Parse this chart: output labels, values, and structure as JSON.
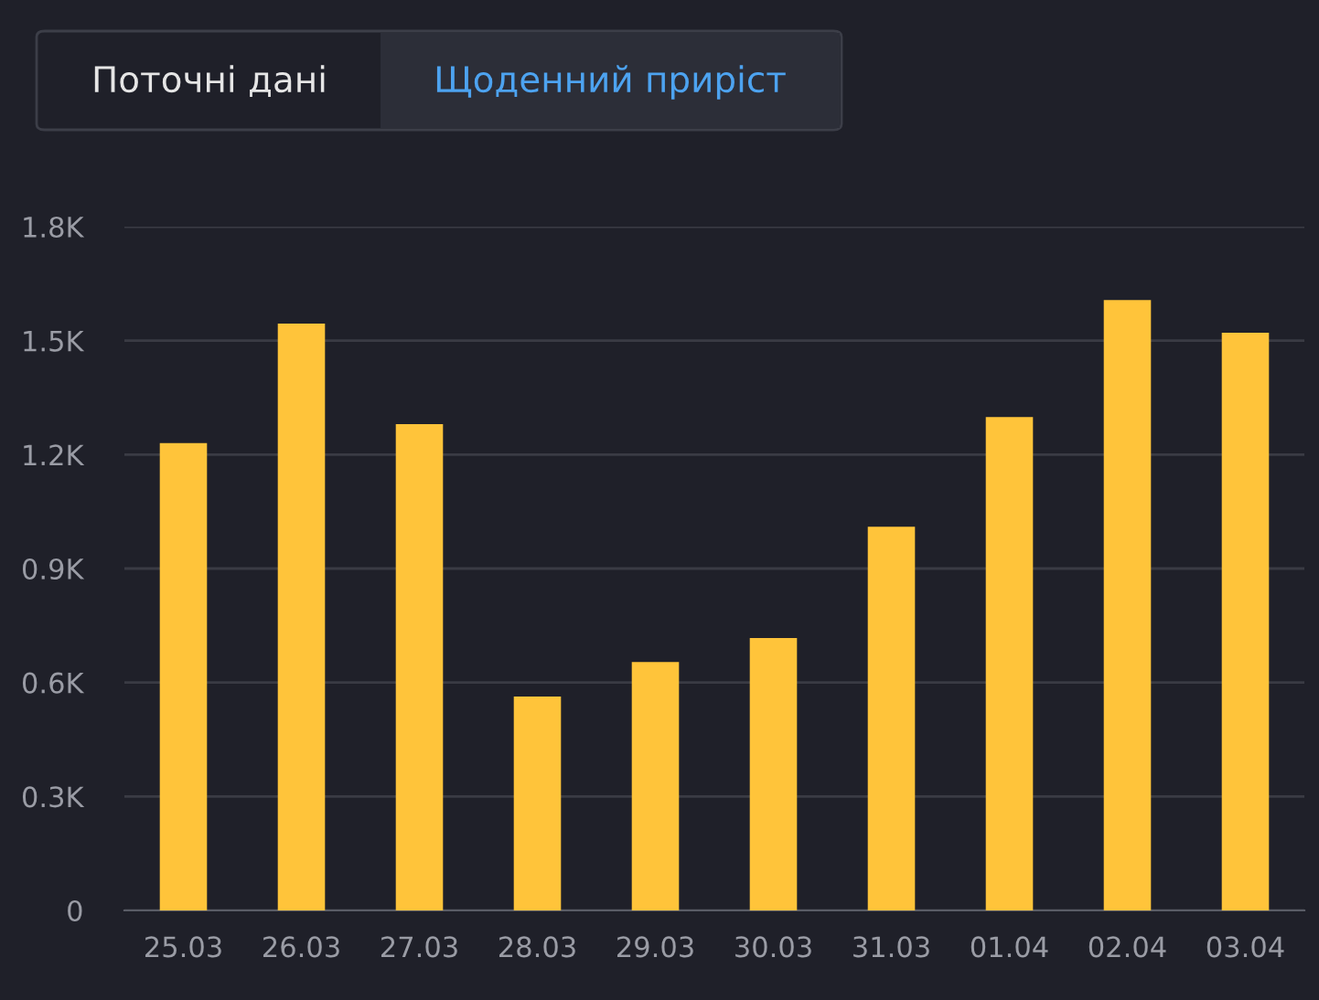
{
  "chart_data": {
    "type": "bar",
    "annotations": [
      "Поточні дані",
      "Щоденний приріст"
    ],
    "categories": [
      "25.03",
      "26.03",
      "27.03",
      "28.03",
      "29.03",
      "30.03",
      "31.03",
      "01.04",
      "02.04",
      "03.04"
    ],
    "values": [
      1230,
      1545,
      1280,
      563,
      654,
      717,
      1010,
      1299,
      1607,
      1521
    ],
    "color": "#ffc43a",
    "ylim": [
      0,
      1800
    ],
    "yticks": [
      0,
      {
        "value": 300,
        "label": "0.3K"
      },
      {
        "value": 600,
        "label": "0.6K"
      },
      {
        "value": 900,
        "label": "0.9K"
      },
      {
        "value": 1200,
        "label": "1.2K"
      },
      {
        "value": 1500,
        "label": "1.5K"
      },
      {
        "value": 1800,
        "label": "1.8K"
      }
    ],
    "grid": "y"
  }
}
